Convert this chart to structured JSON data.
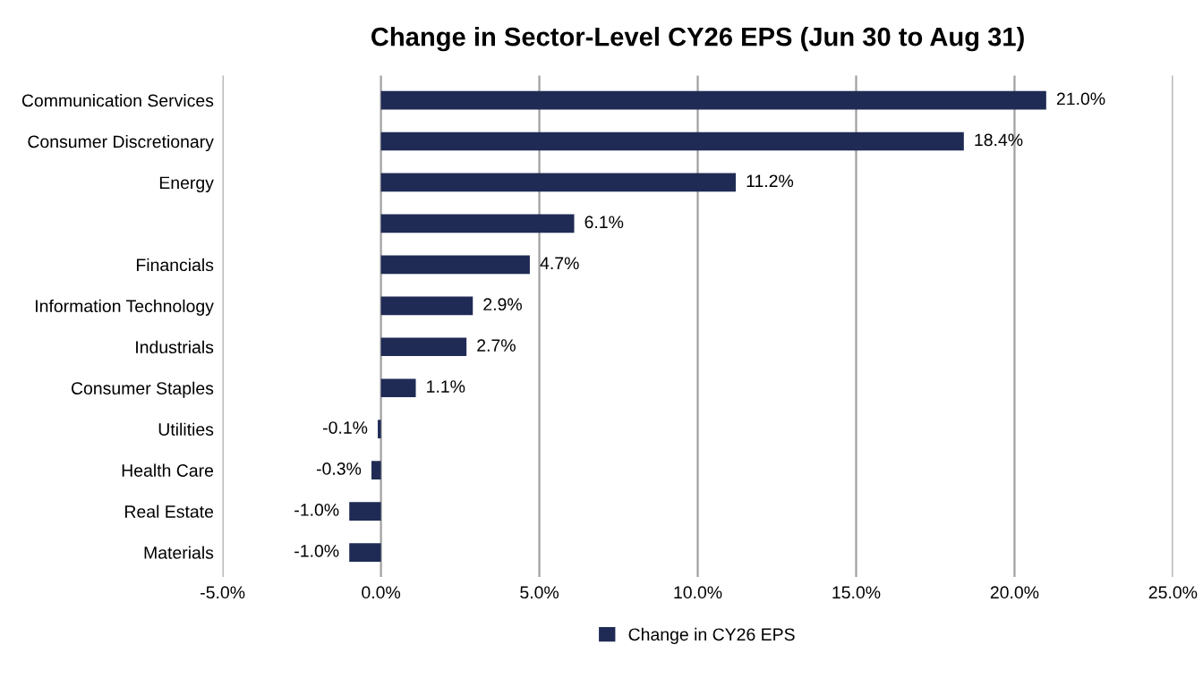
{
  "chart_data": {
    "type": "bar",
    "orientation": "horizontal",
    "title": "Change in Sector-Level CY26 EPS (Jun 30 to Aug 31)",
    "categories": [
      "Communication Services",
      "Consumer Discretionary",
      "Energy",
      null,
      "Financials",
      "Information Technology",
      "Industrials",
      "Consumer Staples",
      "Utilities",
      "Health Care",
      "Real Estate",
      "Materials"
    ],
    "series": [
      {
        "name": "Change in CY26 EPS",
        "color": "#1f2b55",
        "values": [
          21.0,
          18.4,
          11.2,
          6.1,
          4.7,
          2.9,
          2.7,
          1.1,
          -0.1,
          -0.3,
          -1.0,
          -1.0
        ],
        "value_labels": [
          "21.0%",
          "18.4%",
          "11.2%",
          "6.1%",
          "4.7%",
          "2.9%",
          "2.7%",
          "1.1%",
          "-0.1%",
          "-0.3%",
          "-1.0%",
          "-1.0%"
        ]
      }
    ],
    "xlim": [
      -5,
      25
    ],
    "xticks": [
      {
        "value": -5,
        "label": "-5.0%"
      },
      {
        "value": 0,
        "label": "0.0%"
      },
      {
        "value": 5,
        "label": "5.0%"
      },
      {
        "value": 10,
        "label": "10.0%"
      },
      {
        "value": 15,
        "label": "15.0%"
      },
      {
        "value": 20,
        "label": "20.0%"
      },
      {
        "value": 25,
        "label": "25.0%"
      }
    ],
    "grid": "x",
    "legend": "bottom"
  }
}
